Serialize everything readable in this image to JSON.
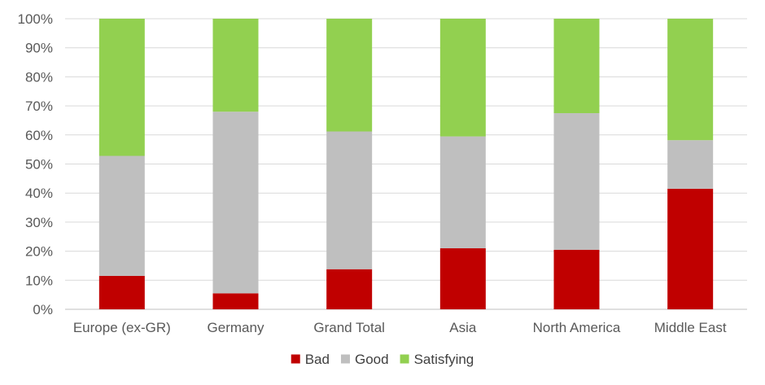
{
  "chart_data": {
    "type": "bar",
    "stacked": true,
    "normalized": true,
    "categories": [
      "Europe (ex-GR)",
      "Germany",
      "Grand Total",
      "Asia",
      "North America",
      "Middle East"
    ],
    "series": [
      {
        "name": "Bad",
        "color": "#C00000",
        "values": [
          11.5,
          5.5,
          13.8,
          21.0,
          20.5,
          41.5
        ]
      },
      {
        "name": "Good",
        "color": "#BFBFBF",
        "values": [
          41.3,
          62.5,
          47.4,
          38.5,
          47.0,
          16.7
        ]
      },
      {
        "name": "Satisfying",
        "color": "#92D050",
        "values": [
          47.2,
          32.0,
          38.8,
          40.5,
          32.5,
          41.8
        ]
      }
    ],
    "ylim": [
      0,
      100
    ],
    "yticks": [
      "0%",
      "10%",
      "20%",
      "30%",
      "40%",
      "50%",
      "60%",
      "70%",
      "80%",
      "90%",
      "100%"
    ],
    "grid": true,
    "legend_position": "bottom",
    "title": "",
    "xlabel": "",
    "ylabel": ""
  }
}
